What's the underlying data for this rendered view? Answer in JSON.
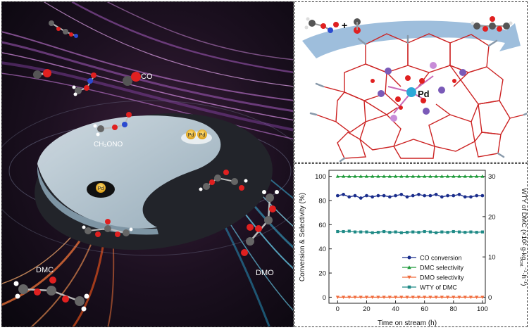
{
  "illustration": {
    "labels": {
      "co": "CO",
      "ch3ono": "CH₃ONO",
      "dmc": "DMC",
      "dmo": "DMO",
      "pd_site_1": "Pd",
      "pd_site_2a": "Pd",
      "pd_site_2b": "Pd"
    }
  },
  "zeolite_structure": {
    "label_center": "Pd",
    "reaction": {
      "plus_sign": "+"
    },
    "colors": {
      "framework": "#cc2222",
      "pd": "#2aa8d8",
      "site_purple": "#7a5ab8",
      "site_pink": "#c88cd8",
      "oxygen": "#e02020",
      "arrow": "#8db3d6"
    }
  },
  "chart_data": {
    "type": "line",
    "title": "",
    "xlabel": "Time on stream (h)",
    "ylabel": "Conversion & Selectivity (%)",
    "y2label": "WTY of DMC (×10² g·kg",
    "y2label_sub": "cat.",
    "y2label_sup": "−1",
    "y2label_tail": "·h",
    "y2label_sup2": "−1",
    "y2label_end": ")",
    "xlim": [
      -6,
      102
    ],
    "ylim": [
      -5,
      105
    ],
    "y2lim": [
      -1.5,
      31.5
    ],
    "xticks": [
      "0",
      "20",
      "40",
      "60",
      "80",
      "100"
    ],
    "yticks": [
      "0",
      "20",
      "40",
      "60",
      "80",
      "100"
    ],
    "y2ticks": [
      "0",
      "10",
      "20",
      "30"
    ],
    "legend_position": "bottom-right",
    "x": [
      0,
      4,
      8,
      12,
      16,
      20,
      24,
      28,
      32,
      36,
      40,
      44,
      48,
      52,
      56,
      60,
      64,
      68,
      72,
      76,
      80,
      84,
      88,
      92,
      96,
      100
    ],
    "series": [
      {
        "name": "CO conversion",
        "axis": "left",
        "marker": "circle",
        "color": "#1a2d8c",
        "values": [
          84,
          85,
          83,
          84,
          82,
          84,
          83,
          84,
          84,
          83,
          84,
          85,
          83,
          84,
          85,
          84,
          84,
          85,
          83,
          84,
          84,
          85,
          83,
          83,
          84,
          84
        ]
      },
      {
        "name": "DMC selectivity",
        "axis": "left",
        "marker": "triangle-up",
        "color": "#1f9a3a",
        "values": [
          100,
          100,
          100,
          100,
          100,
          100,
          100,
          100,
          100,
          100,
          100,
          100,
          100,
          100,
          100,
          100,
          100,
          100,
          100,
          100,
          100,
          100,
          100,
          100,
          100,
          100
        ]
      },
      {
        "name": "DMO selectivity",
        "axis": "left",
        "marker": "triangle-down",
        "color": "#f06a3a",
        "values": [
          0,
          0,
          0,
          0,
          0,
          0,
          0,
          0,
          0,
          0,
          0,
          0,
          0,
          0,
          0,
          0,
          0,
          0,
          0,
          0,
          0,
          0,
          0,
          0,
          0,
          0
        ]
      },
      {
        "name": "WTY of DMC",
        "axis": "right",
        "marker": "square",
        "color": "#1f8a86",
        "values": [
          16.3,
          16.3,
          16.4,
          16.2,
          16.2,
          16.2,
          16.0,
          16.1,
          16.3,
          16.1,
          16.2,
          16.0,
          16.1,
          16.2,
          16.1,
          16.3,
          16.2,
          16.0,
          16.2,
          16.1,
          16.3,
          16.2,
          16.1,
          16.2,
          16.1,
          16.2
        ]
      }
    ]
  }
}
